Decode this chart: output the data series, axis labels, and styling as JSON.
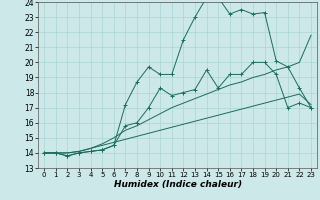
{
  "title": "",
  "xlabel": "Humidex (Indice chaleur)",
  "xlim": [
    -0.5,
    23.5
  ],
  "ylim": [
    13,
    24
  ],
  "xticks": [
    0,
    1,
    2,
    3,
    4,
    5,
    6,
    7,
    8,
    9,
    10,
    11,
    12,
    13,
    14,
    15,
    16,
    17,
    18,
    19,
    20,
    21,
    22,
    23
  ],
  "yticks": [
    13,
    14,
    15,
    16,
    17,
    18,
    19,
    20,
    21,
    22,
    23,
    24
  ],
  "bg_color": "#cce8e8",
  "grid_color": "#aad4d4",
  "line_color": "#1a6b5a",
  "series": [
    [
      14.0,
      14.0,
      13.8,
      14.0,
      14.1,
      14.2,
      14.5,
      17.2,
      18.7,
      19.7,
      19.2,
      19.2,
      21.5,
      23.0,
      24.3,
      24.3,
      23.2,
      23.5,
      23.2,
      23.3,
      20.1,
      19.7,
      18.3,
      17.0
    ],
    [
      14.0,
      14.0,
      13.8,
      14.0,
      14.1,
      14.2,
      14.5,
      15.8,
      16.0,
      17.0,
      18.3,
      17.8,
      18.0,
      18.2,
      19.5,
      18.3,
      19.2,
      19.2,
      20.0,
      20.0,
      19.2,
      17.0,
      17.3,
      17.0
    ],
    [
      14.0,
      14.0,
      14.0,
      14.1,
      14.3,
      14.6,
      15.0,
      15.5,
      15.8,
      16.2,
      16.6,
      17.0,
      17.3,
      17.6,
      17.9,
      18.2,
      18.5,
      18.7,
      19.0,
      19.2,
      19.5,
      19.7,
      20.0,
      21.8
    ],
    [
      14.0,
      14.0,
      14.0,
      14.1,
      14.3,
      14.5,
      14.7,
      14.9,
      15.1,
      15.3,
      15.5,
      15.7,
      15.9,
      16.1,
      16.3,
      16.5,
      16.7,
      16.9,
      17.1,
      17.3,
      17.5,
      17.7,
      17.9,
      17.2
    ]
  ]
}
